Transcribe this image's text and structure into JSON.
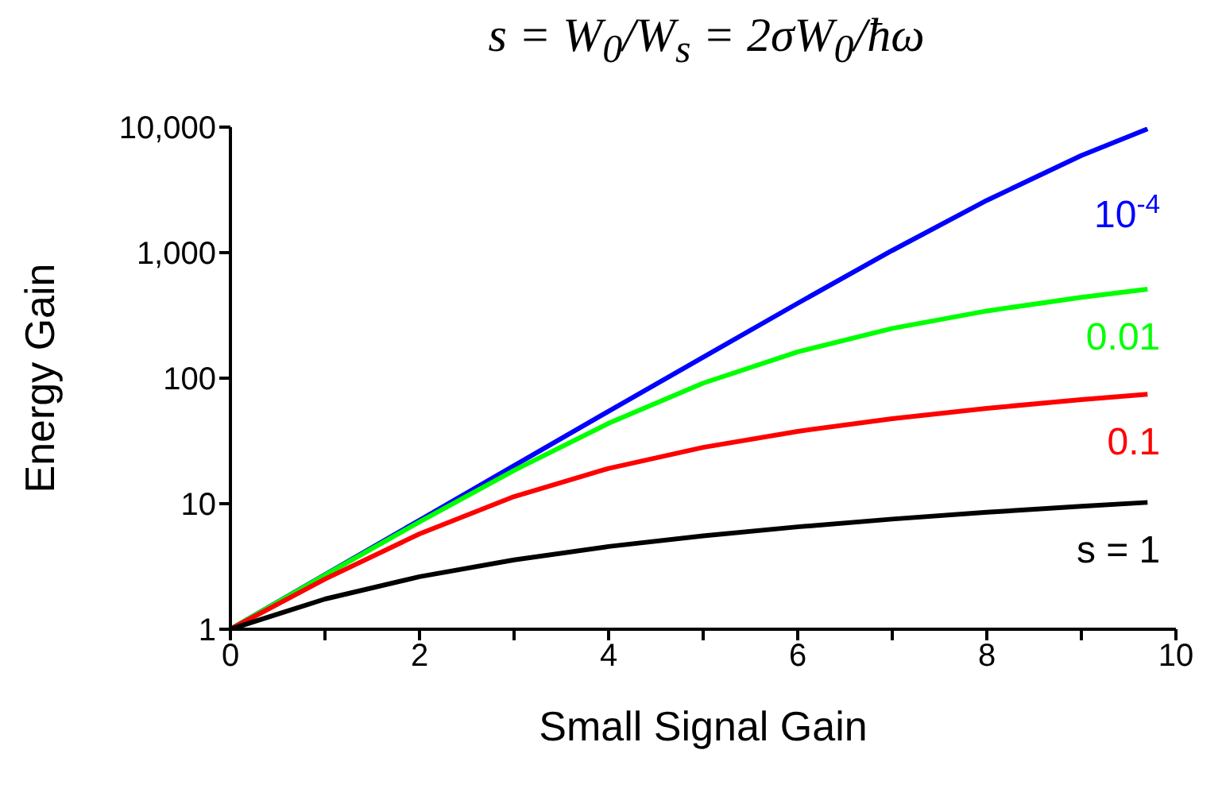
{
  "chart_data": {
    "type": "line",
    "title": "s = W$_{0}$/W$_{s}$ = 2σW$_{0}$/ħω",
    "xlabel": "Small Signal Gain",
    "ylabel": "Energy Gain",
    "x": [
      0,
      1,
      2,
      3,
      4,
      5,
      6,
      7,
      8,
      9,
      9.7
    ],
    "series": [
      {
        "name": "10$^{-4}$",
        "color": "#0000ff",
        "values": [
          1,
          2.72,
          7.39,
          20.1,
          54.5,
          147,
          395,
          1041,
          2609,
          5935,
          9677
        ]
      },
      {
        "name": "0.01",
        "color": "#00ff00",
        "values": [
          1,
          2.7,
          7.16,
          18.4,
          43.7,
          91.3,
          162,
          249,
          343,
          441,
          511
        ]
      },
      {
        "name": "0.1",
        "color": "#ff0000",
        "values": [
          1,
          2.51,
          5.75,
          11.4,
          19.1,
          28.1,
          37.7,
          47.6,
          57.5,
          67.5,
          74.5
        ]
      },
      {
        "name": "s = 1",
        "color": "#000000",
        "values": [
          1,
          1.74,
          2.62,
          3.57,
          4.56,
          5.55,
          6.54,
          7.54,
          8.54,
          9.54,
          10.24
        ]
      }
    ],
    "log": "y",
    "xlim": [
      0,
      10
    ],
    "ylim": [
      1,
      10000
    ],
    "xticks": [
      0,
      {
        "value": 1,
        "label": null
      },
      2,
      {
        "value": 3,
        "label": null
      },
      4,
      {
        "value": 5,
        "label": null
      },
      6,
      {
        "value": 7,
        "label": null
      },
      8,
      {
        "value": 9,
        "label": null
      },
      10
    ],
    "yticks": [
      1,
      10,
      100,
      {
        "value": 1000,
        "label": "1,000"
      },
      {
        "value": 10000,
        "label": "10,000"
      }
    ],
    "grid": false,
    "legend": false,
    "marker": "none",
    "line_style": "solid"
  }
}
